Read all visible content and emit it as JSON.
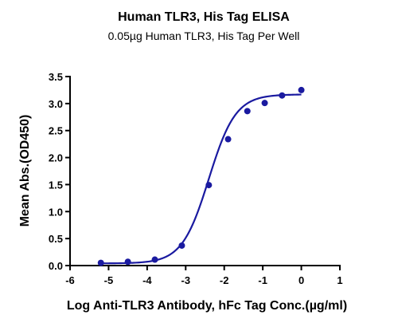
{
  "chart_data": {
    "type": "scatter",
    "title": "Human TLR3, His Tag ELISA",
    "subtitle": "0.05µg Human TLR3, His Tag Per Well",
    "xlabel": "Log Anti-TLR3 Antibody, hFc Tag Conc.(µg/ml)",
    "ylabel": "Mean Abs.(OD450)",
    "xlim": [
      -6,
      1
    ],
    "ylim": [
      0.0,
      3.5
    ],
    "xticks": [
      "-6",
      "-5",
      "-4",
      "-3",
      "-2",
      "-1",
      "0",
      "1"
    ],
    "yticks": [
      "0.0",
      "0.5",
      "1.0",
      "1.5",
      "2.0",
      "2.5",
      "3.0",
      "3.5"
    ],
    "grid": false,
    "series": [
      {
        "x": [
          -5.2,
          -4.5,
          -3.8,
          -3.1,
          -2.4,
          -1.9,
          -1.4,
          -0.95,
          -0.5,
          0.0
        ],
        "y": [
          0.05,
          0.07,
          0.11,
          0.37,
          1.49,
          2.34,
          2.86,
          3.01,
          3.15,
          3.25
        ],
        "fit": {
          "model": "4PL",
          "bottom": 0.04,
          "top": 3.17,
          "logEC50": -2.4,
          "hill": 1.25,
          "x_range": [
            -5.2,
            0.0
          ]
        }
      }
    ],
    "colors": {
      "series": "#1a1aa0",
      "axis": "#000000"
    }
  }
}
